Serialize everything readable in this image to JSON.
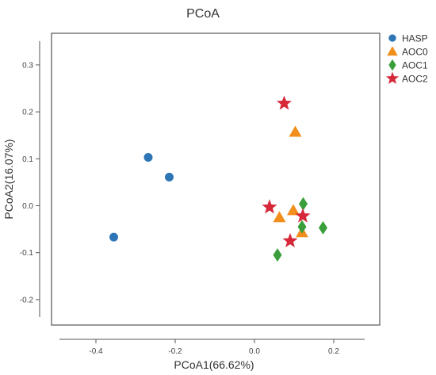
{
  "chart_data": {
    "type": "scatter",
    "title": "PCoA",
    "xlabel": "PCoA1(66.62%)",
    "ylabel": "PCoA2(16.07%)",
    "xlim": [
      -0.5,
      0.27
    ],
    "ylim": [
      -0.25,
      0.365
    ],
    "xticks": [
      -0.4,
      -0.2,
      0.0,
      0.2
    ],
    "yticks": [
      -0.2,
      -0.1,
      0.0,
      0.1,
      0.2,
      0.3
    ],
    "tick_labels_x": [
      "-0.4",
      "-0.2",
      "0.0",
      "0.2"
    ],
    "tick_labels_y": [
      "-0.2",
      "-0.1",
      "0.0",
      "0.1",
      "0.2",
      "0.3"
    ],
    "grid": false,
    "legend_position": "top-right outside",
    "series": [
      {
        "name": "HASP",
        "marker": "circle",
        "color": "#2E75B6",
        "points": [
          [
            -0.355,
            -0.067
          ],
          [
            -0.268,
            0.103
          ],
          [
            -0.215,
            0.061
          ]
        ]
      },
      {
        "name": "AOC0",
        "marker": "triangle",
        "color": "#F28E1C",
        "points": [
          [
            0.103,
            0.157
          ],
          [
            0.063,
            -0.025
          ],
          [
            0.098,
            -0.01
          ],
          [
            0.12,
            -0.057
          ]
        ]
      },
      {
        "name": "AOC1",
        "marker": "diamond",
        "color": "#3A9E3A",
        "points": [
          [
            0.123,
            0.004
          ],
          [
            0.12,
            -0.045
          ],
          [
            0.058,
            -0.105
          ],
          [
            0.173,
            -0.047
          ]
        ]
      },
      {
        "name": "AOC2",
        "marker": "star",
        "color": "#D62839",
        "points": [
          [
            0.075,
            0.218
          ],
          [
            0.038,
            -0.003
          ],
          [
            0.122,
            -0.022
          ],
          [
            0.09,
            -0.075
          ]
        ]
      }
    ]
  }
}
